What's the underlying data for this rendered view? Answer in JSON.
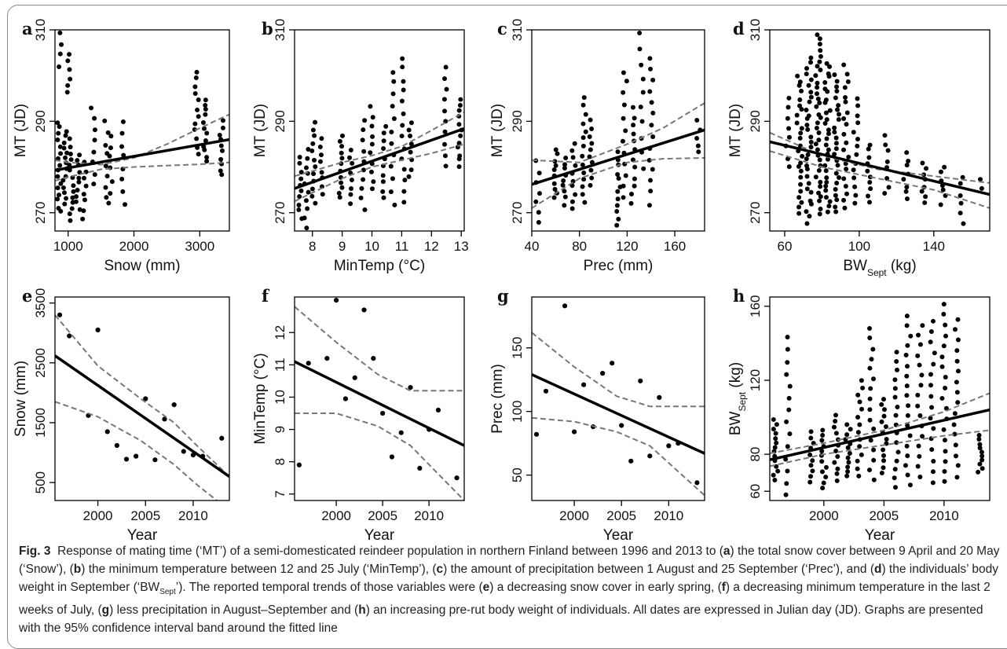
{
  "figure": {
    "caption_label": "Fig. 3",
    "caption": [
      {
        "t": "Response of mating time (‘MT’) of a semi-domesticated reindeer population in northern Finland between 1996 and 2013 to ("
      },
      {
        "t": "a",
        "b": true
      },
      {
        "t": ") the total snow cover between 9 April and 20 May (‘Snow’), ("
      },
      {
        "t": "b",
        "b": true
      },
      {
        "t": ") the minimum temperature between 12 and 25 July (‘MinTemp’), ("
      },
      {
        "t": "c",
        "b": true
      },
      {
        "t": ") the amount of precipitation between 1 August and 25 September (‘Prec’), and ("
      },
      {
        "t": "d",
        "b": true
      },
      {
        "t": ") the individuals’ body weight in September (‘BW"
      },
      {
        "t": "Sept",
        "sub": true
      },
      {
        "t": "’). The reported temporal trends of those variables were ("
      },
      {
        "t": "e",
        "b": true
      },
      {
        "t": ") a decreasing snow cover in early spring, ("
      },
      {
        "t": "f",
        "b": true
      },
      {
        "t": ") a decreasing minimum temperature in the last 2 weeks of July, ("
      },
      {
        "t": "g",
        "b": true
      },
      {
        "t": ") less precipitation in August–September and ("
      },
      {
        "t": "h",
        "b": true
      },
      {
        "t": ") an increasing pre-rut body weight of individuals. All dates are expressed in Julian day (JD). Graphs are presented with the 95% confidence interval band around the fitted line"
      }
    ]
  },
  "chart_data": [
    {
      "panel": "a",
      "type": "scatter",
      "xlabel": "Snow (mm)",
      "ylabel": "MT (JD)",
      "xlim": [
        800,
        3450
      ],
      "ylim": [
        266,
        310
      ],
      "xticks": [
        1000,
        2000,
        3000
      ],
      "yticks": [
        270,
        290,
        310
      ],
      "fit": [
        [
          800,
          279.3
        ],
        [
          3450,
          286.0
        ]
      ],
      "ci_upper": [
        [
          800,
          281.5
        ],
        [
          1000,
          281.0
        ],
        [
          1500,
          280.5
        ],
        [
          2000,
          282.0
        ],
        [
          2500,
          285.0
        ],
        [
          3000,
          288.5
        ],
        [
          3450,
          291.5
        ]
      ],
      "ci_lower": [
        [
          800,
          277.0
        ],
        [
          1000,
          277.8
        ],
        [
          1500,
          279.5
        ],
        [
          2000,
          280.0
        ],
        [
          2500,
          280.3
        ],
        [
          3000,
          280.6
        ],
        [
          3450,
          281.0
        ]
      ],
      "clusters": [
        [
          860,
          270,
          290,
          16
        ],
        [
          890,
          302,
          309,
          4
        ],
        [
          950,
          272,
          288,
          14
        ],
        [
          1000,
          296,
          305,
          6
        ],
        [
          1050,
          268,
          286,
          14
        ],
        [
          1150,
          271,
          283,
          10
        ],
        [
          1250,
          269,
          281,
          8
        ],
        [
          1380,
          276,
          293,
          8
        ],
        [
          1580,
          273,
          290,
          8
        ],
        [
          1640,
          272,
          287,
          7
        ],
        [
          1840,
          272,
          290,
          8
        ],
        [
          2950,
          283,
          301,
          12
        ],
        [
          3080,
          281,
          295,
          12
        ],
        [
          3330,
          278,
          290,
          10
        ]
      ]
    },
    {
      "panel": "b",
      "type": "scatter",
      "xlabel": "MinTemp (°C)",
      "ylabel": "MT (JD)",
      "xlim": [
        7.4,
        13.1
      ],
      "ylim": [
        266,
        310
      ],
      "xticks": [
        8,
        9,
        10,
        11,
        12,
        13
      ],
      "yticks": [
        270,
        290,
        310
      ],
      "fit": [
        [
          7.4,
          275.3
        ],
        [
          13.1,
          288.4
        ]
      ],
      "ci_upper": [
        [
          7.4,
          278.0
        ],
        [
          9,
          281.0
        ],
        [
          10,
          282.5
        ],
        [
          11,
          284.5
        ],
        [
          12,
          288.0
        ],
        [
          13.1,
          292.0
        ]
      ],
      "ci_lower": [
        [
          7.4,
          272.5
        ],
        [
          9,
          277.5
        ],
        [
          10,
          280.0
        ],
        [
          11,
          281.5
        ],
        [
          12,
          283.0
        ],
        [
          13.1,
          285.0
        ]
      ],
      "clusters": [
        [
          7.6,
          269,
          282,
          10
        ],
        [
          7.8,
          267,
          284,
          10
        ],
        [
          8.05,
          272,
          290,
          12
        ],
        [
          8.3,
          274,
          286,
          8
        ],
        [
          8.95,
          273,
          287,
          12
        ],
        [
          9.3,
          272,
          284,
          8
        ],
        [
          9.7,
          271,
          290,
          10
        ],
        [
          10.0,
          275,
          293,
          10
        ],
        [
          10.4,
          273,
          289,
          10
        ],
        [
          10.7,
          272,
          301,
          12
        ],
        [
          11.05,
          272,
          304,
          14
        ],
        [
          11.3,
          278,
          290,
          8
        ],
        [
          12.5,
          280,
          302,
          10
        ],
        [
          12.95,
          280,
          295,
          12
        ]
      ]
    },
    {
      "panel": "c",
      "type": "scatter",
      "xlabel": "Prec (mm)",
      "ylabel": "MT (JD)",
      "xlim": [
        40,
        185
      ],
      "ylim": [
        266,
        310
      ],
      "xticks": [
        40,
        80,
        120,
        160
      ],
      "yticks": [
        270,
        290,
        310
      ],
      "fit": [
        [
          40,
          276.2
        ],
        [
          185,
          288.1
        ]
      ],
      "ci_upper": [
        [
          40,
          281.5
        ],
        [
          80,
          281.0
        ],
        [
          120,
          285.0
        ],
        [
          150,
          288.5
        ],
        [
          185,
          294.0
        ]
      ],
      "ci_lower": [
        [
          40,
          271.0
        ],
        [
          80,
          277.5
        ],
        [
          120,
          281.0
        ],
        [
          150,
          281.8
        ],
        [
          185,
          282.0
        ]
      ],
      "clusters": [
        [
          45,
          268,
          281,
          7
        ],
        [
          60,
          273,
          284,
          10
        ],
        [
          67,
          272,
          282,
          9
        ],
        [
          75,
          271,
          285,
          10
        ],
        [
          84,
          272,
          295,
          14
        ],
        [
          90,
          276,
          290,
          10
        ],
        [
          113,
          267,
          283,
          12
        ],
        [
          118,
          273,
          301,
          12
        ],
        [
          125,
          272,
          293,
          12
        ],
        [
          132,
          280,
          309,
          10
        ],
        [
          140,
          272,
          304,
          14
        ],
        [
          180,
          283,
          290,
          5
        ]
      ]
    },
    {
      "panel": "d",
      "type": "scatter",
      "xlabel": "BW_Sept (kg)",
      "ylabel": "MT (JD)",
      "xlim": [
        52,
        170
      ],
      "ylim": [
        266,
        310
      ],
      "xticks": [
        60,
        100,
        140
      ],
      "yticks": [
        270,
        290,
        310
      ],
      "fit": [
        [
          52,
          285.5
        ],
        [
          170,
          274.0
        ]
      ],
      "ci_upper": [
        [
          52,
          287.5
        ],
        [
          80,
          282.5
        ],
        [
          110,
          279.5
        ],
        [
          140,
          278.0
        ],
        [
          170,
          276.5
        ]
      ],
      "ci_lower": [
        [
          52,
          283.5
        ],
        [
          80,
          280.0
        ],
        [
          110,
          277.5
        ],
        [
          140,
          275.0
        ],
        [
          170,
          271.0
        ]
      ],
      "clusters": [
        [
          62,
          280,
          295,
          8
        ],
        [
          68,
          270,
          300,
          25
        ],
        [
          73,
          268,
          304,
          30
        ],
        [
          78,
          270,
          309,
          35
        ],
        [
          83,
          270,
          303,
          30
        ],
        [
          88,
          270,
          300,
          25
        ],
        [
          93,
          271,
          302,
          20
        ],
        [
          98,
          272,
          295,
          14
        ],
        [
          105,
          272,
          285,
          10
        ],
        [
          115,
          274,
          287,
          8
        ],
        [
          125,
          273,
          283,
          8
        ],
        [
          135,
          272,
          281,
          8
        ],
        [
          145,
          272,
          280,
          7
        ],
        [
          155,
          268,
          278,
          6
        ],
        [
          165,
          275,
          277,
          2
        ]
      ]
    },
    {
      "panel": "e",
      "type": "scatter",
      "xlabel": "Year",
      "ylabel": "Snow (mm)",
      "xlim": [
        1995.5,
        2013.8
      ],
      "ylim": [
        200,
        3600
      ],
      "xticks": [
        2000,
        2005,
        2010
      ],
      "yticks": [
        500,
        1500,
        2500,
        3500
      ],
      "points": [
        [
          1996,
          3300
        ],
        [
          1997,
          2950
        ],
        [
          1999,
          1620
        ],
        [
          2000,
          3050
        ],
        [
          2001,
          1350
        ],
        [
          2002,
          1120
        ],
        [
          2003,
          890
        ],
        [
          2004,
          940
        ],
        [
          2005,
          1900
        ],
        [
          2006,
          880
        ],
        [
          2007,
          1560
        ],
        [
          2008,
          1800
        ],
        [
          2009,
          1020
        ],
        [
          2010,
          960
        ],
        [
          2011,
          940
        ],
        [
          2013,
          1240
        ]
      ],
      "fit": [
        [
          1995.5,
          2620
        ],
        [
          2013.8,
          600
        ]
      ],
      "ci_upper": [
        [
          1995.5,
          3300
        ],
        [
          2000,
          2450
        ],
        [
          2004.5,
          1900
        ],
        [
          2008,
          1500
        ],
        [
          2010.5,
          1100
        ],
        [
          2013.8,
          600
        ]
      ],
      "ci_lower": [
        [
          1995.5,
          1850
        ],
        [
          2000,
          1600
        ],
        [
          2004.5,
          1200
        ],
        [
          2008,
          800
        ],
        [
          2010.5,
          450
        ],
        [
          2012.5,
          200
        ]
      ]
    },
    {
      "panel": "f",
      "type": "scatter",
      "xlabel": "Year",
      "ylabel": "MinTemp (°C)",
      "xlim": [
        1995.5,
        2013.8
      ],
      "ylim": [
        6.8,
        13.1
      ],
      "xticks": [
        2000,
        2005,
        2010
      ],
      "yticks": [
        7,
        8,
        9,
        10,
        11,
        12
      ],
      "points": [
        [
          1996,
          7.9
        ],
        [
          1997,
          11.05
        ],
        [
          1999,
          11.2
        ],
        [
          2000,
          13.0
        ],
        [
          2001,
          9.95
        ],
        [
          2002,
          10.6
        ],
        [
          2003,
          12.7
        ],
        [
          2004,
          11.2
        ],
        [
          2005,
          9.5
        ],
        [
          2006,
          8.15
        ],
        [
          2007,
          8.9
        ],
        [
          2008,
          10.3
        ],
        [
          2009,
          7.8
        ],
        [
          2010,
          9.0
        ],
        [
          2011,
          9.6
        ],
        [
          2013,
          7.5
        ]
      ],
      "fit": [
        [
          1995.5,
          11.1
        ],
        [
          2013.8,
          8.5
        ]
      ],
      "ci_upper": [
        [
          1995.5,
          12.8
        ],
        [
          2000,
          11.7
        ],
        [
          2004.5,
          10.7
        ],
        [
          2008,
          10.2
        ],
        [
          2013.8,
          10.2
        ]
      ],
      "ci_lower": [
        [
          1995.5,
          9.5
        ],
        [
          2000,
          9.5
        ],
        [
          2004.5,
          9.1
        ],
        [
          2008,
          8.5
        ],
        [
          2013.8,
          6.8
        ]
      ]
    },
    {
      "panel": "g",
      "type": "scatter",
      "xlabel": "Year",
      "ylabel": "Prec (mm)",
      "xlim": [
        1995.5,
        2013.8
      ],
      "ylim": [
        30,
        190
      ],
      "xticks": [
        2000,
        2005,
        2010
      ],
      "yticks": [
        50,
        100,
        150
      ],
      "points": [
        [
          1996,
          82
        ],
        [
          1997,
          116
        ],
        [
          1999,
          183
        ],
        [
          2000,
          84
        ],
        [
          2001,
          121
        ],
        [
          2002,
          88
        ],
        [
          2003,
          130
        ],
        [
          2004,
          138
        ],
        [
          2005,
          89
        ],
        [
          2006,
          61
        ],
        [
          2007,
          124
        ],
        [
          2008,
          65
        ],
        [
          2009,
          111
        ],
        [
          2010,
          73
        ],
        [
          2011,
          75
        ],
        [
          2013,
          44
        ]
      ],
      "fit": [
        [
          1995.5,
          129
        ],
        [
          2013.8,
          67
        ]
      ],
      "ci_upper": [
        [
          1995.5,
          162
        ],
        [
          2000,
          135
        ],
        [
          2004.5,
          112
        ],
        [
          2008,
          104
        ],
        [
          2013.8,
          104
        ]
      ],
      "ci_lower": [
        [
          1995.5,
          95
        ],
        [
          2000,
          92
        ],
        [
          2004.5,
          84
        ],
        [
          2008,
          73
        ],
        [
          2013.8,
          34
        ]
      ]
    },
    {
      "panel": "h",
      "type": "scatter",
      "xlabel": "Year",
      "ylabel": "BW_Sept (kg)",
      "xlim": [
        1995.5,
        2013.8
      ],
      "ylim": [
        55,
        165
      ],
      "xticks": [
        2000,
        2005,
        2010
      ],
      "yticks": [
        60,
        80,
        120,
        160
      ],
      "fit": [
        [
          1995.5,
          77
        ],
        [
          2013.8,
          104
        ]
      ],
      "ci_upper": [
        [
          1995.5,
          80.5
        ],
        [
          2000,
          86
        ],
        [
          2005,
          93
        ],
        [
          2010,
          103
        ],
        [
          2013.8,
          113
        ]
      ],
      "ci_lower": [
        [
          1995.5,
          73.5
        ],
        [
          2000,
          80
        ],
        [
          2005,
          85
        ],
        [
          2010,
          90
        ],
        [
          2013.8,
          93
        ]
      ],
      "clusters": [
        [
          1996,
          66,
          99,
          14
        ],
        [
          1997,
          58,
          143,
          14
        ],
        [
          1999,
          65,
          92,
          10
        ],
        [
          2000,
          62,
          93,
          12
        ],
        [
          2001,
          66,
          101,
          12
        ],
        [
          2002,
          68,
          96,
          12
        ],
        [
          2003,
          68,
          120,
          14
        ],
        [
          2004,
          66,
          148,
          16
        ],
        [
          2005,
          70,
          110,
          14
        ],
        [
          2006,
          62,
          135,
          16
        ],
        [
          2007,
          63,
          155,
          18
        ],
        [
          2008,
          68,
          150,
          16
        ],
        [
          2009,
          65,
          152,
          16
        ],
        [
          2010,
          65,
          161,
          18
        ],
        [
          2011,
          68,
          153,
          16
        ],
        [
          2013,
          70,
          90,
          10
        ]
      ]
    }
  ]
}
